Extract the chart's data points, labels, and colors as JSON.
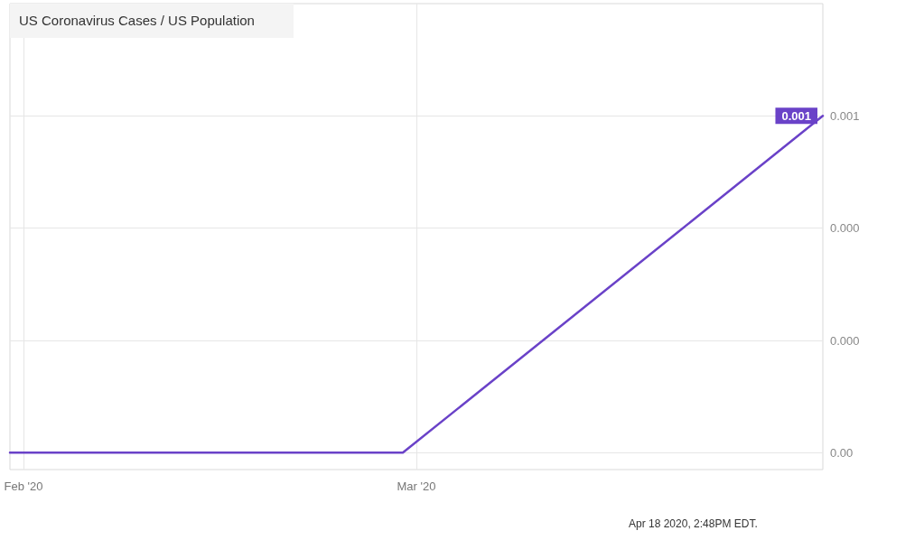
{
  "chart_data": {
    "type": "line",
    "title": "US Coronavirus Cases / US Population",
    "x": [
      "2020-01-31",
      "2020-02-29",
      "2020-03-31"
    ],
    "series": [
      {
        "color": "#6a42c8",
        "values": [
          0,
          0,
          0.0006
        ],
        "value_labels": [
          null,
          null,
          "0.001"
        ]
      }
    ],
    "xlim": [
      "2020-01-31",
      "2020-03-31"
    ],
    "xticks": [
      {
        "value": "2020-02-01",
        "label": "Feb '20"
      },
      {
        "value": "2020-03-01",
        "label": "Mar '20"
      }
    ],
    "ylim": [
      -3e-05,
      0.0008
    ],
    "yticks": [
      {
        "value": 0,
        "label": "0.00"
      },
      {
        "value": 0.0002,
        "label": "0.000"
      },
      {
        "value": 0.0004,
        "label": "0.000"
      },
      {
        "value": 0.0006,
        "label": "0.001"
      }
    ],
    "grid": true,
    "line_style": "solid",
    "annotations": [
      "Apr 18 2020, 2:48PM EDT."
    ]
  }
}
